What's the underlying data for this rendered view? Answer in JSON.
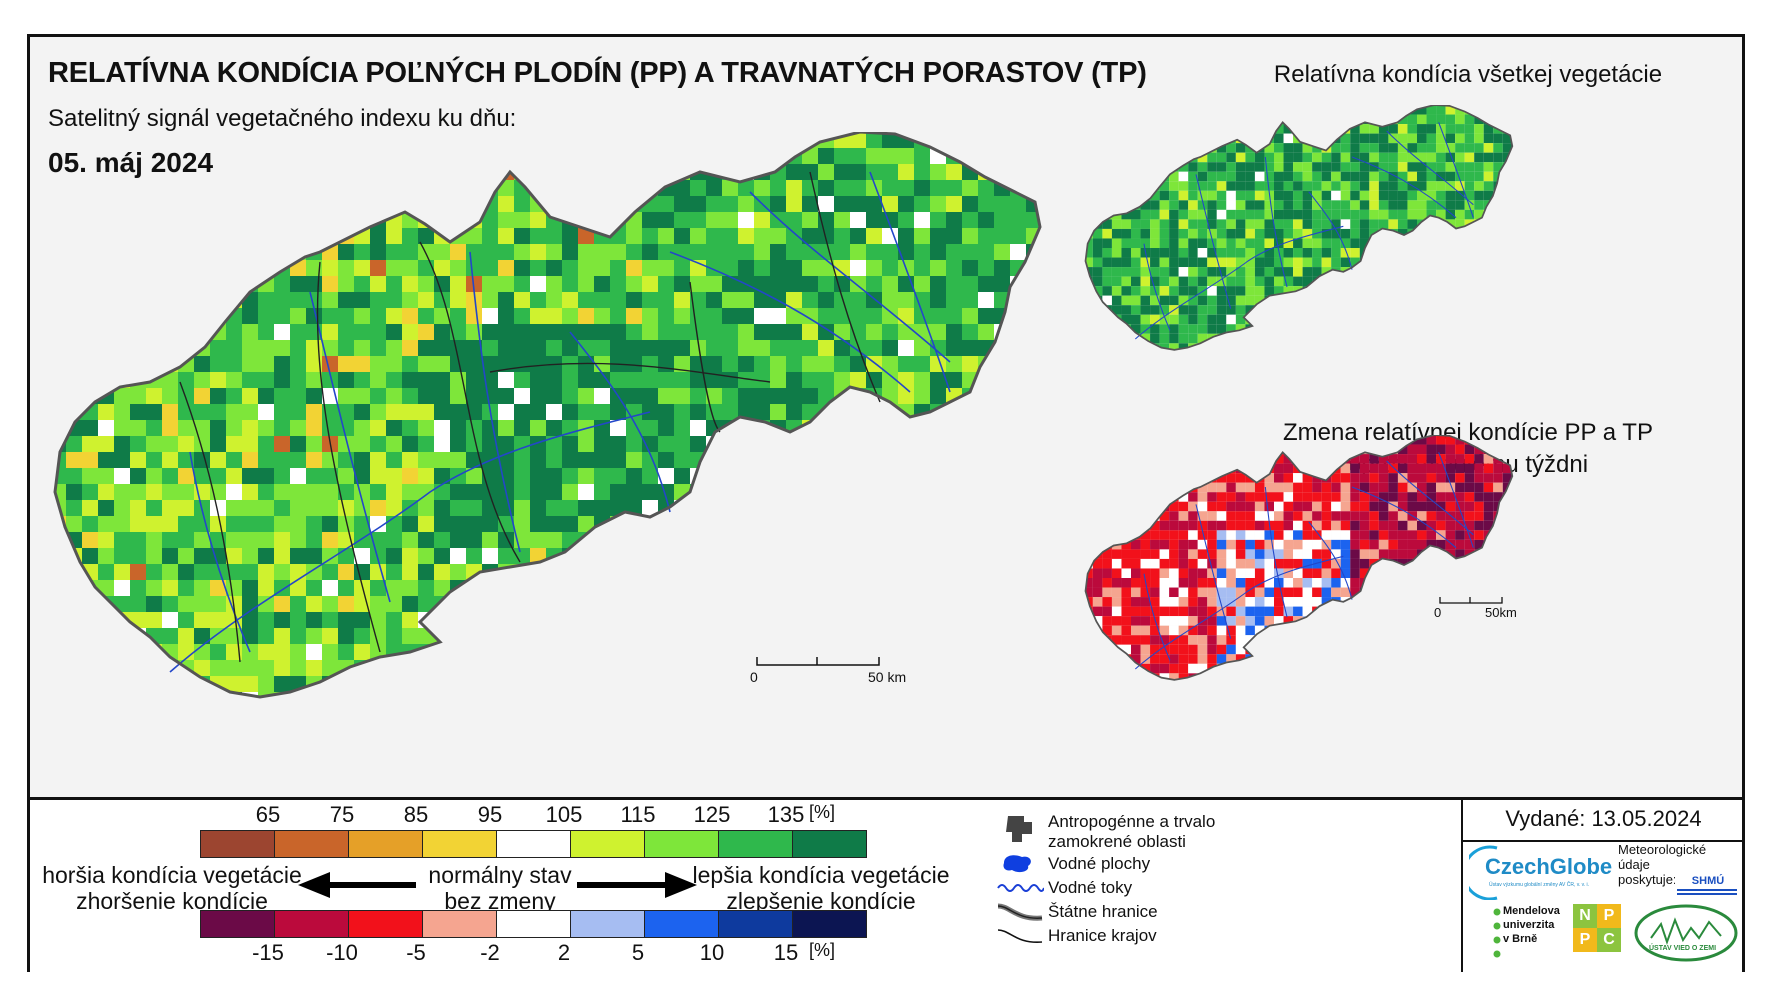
{
  "header": {
    "title": "RELATÍVNA KONDÍCIA POĽNÝCH PLODÍN (PP) A TRAVNATÝCH PORASTOV (TP)",
    "subtitle": "Satelitný signál vegetačného indexu ku dňu:",
    "date": "05. máj 2024"
  },
  "insets": {
    "all_vegetation_title": "Relatívna kondícia všetkej vegetácie",
    "change_title_line1": "Zmena relatívnej kondície PP a TP",
    "change_title_line2": "oproti minulému týždni"
  },
  "scalebars": {
    "main": {
      "zero": "0",
      "end": "50 km"
    },
    "inset": {
      "zero": "0",
      "end": "50km"
    }
  },
  "legend": {
    "condition_ticks": [
      "65",
      "75",
      "85",
      "95",
      "105",
      "115",
      "125",
      "135",
      "[%]"
    ],
    "condition_colors": [
      "#9c4530",
      "#c9652a",
      "#e5a028",
      "#f2d334",
      "#ffffff",
      "#cff22f",
      "#7ee63a",
      "#2fb84c",
      "#0f7b48"
    ],
    "change_ticks": [
      "-15",
      "-10",
      "-5",
      "-2",
      "2",
      "5",
      "10",
      "15",
      "[%]"
    ],
    "change_colors": [
      "#6b0a47",
      "#bb0a3c",
      "#f2111b",
      "#f5a590",
      "#ffffff",
      "#a6bdf2",
      "#1c63ef",
      "#0e3a9e",
      "#0c1552"
    ],
    "left_line1": "horšia kondícia vegetácie",
    "left_line2": "zhoršenie kondície",
    "center_line1": "normálny stav",
    "center_line2": "bez zmeny",
    "right_line1": "lepšia kondícia vegetácie",
    "right_line2": "zlepšenie kondície"
  },
  "symbols": {
    "anthropogenic_line1": "Antropogénne a trvalo",
    "anthropogenic_line2": "zamokrené oblasti",
    "water_bodies": "Vodné plochy",
    "water_courses": "Vodné toky",
    "state_borders": "Štátne hranice",
    "region_borders": "Hranice krajov"
  },
  "issued": "Vydané: 13.05.2024",
  "logos": {
    "czechglobe": "CzechGlobe",
    "czechglobe_sub": "Ústav výzkumu globální změny AV ČR, v. v. i.",
    "shmu_caption_line1": "Meteorologické",
    "shmu_caption_line2": "údaje",
    "shmu_caption_line3": "poskytuje:",
    "shmu": "SHMÚ",
    "mendelu_line1": "Mendelova",
    "mendelu_line2": "univerzita",
    "mendelu_line3": "v Brně",
    "nppc_letters": [
      "N",
      "P",
      "P",
      "C"
    ],
    "uvz": "ÚSTAV VIED O ZEMI"
  }
}
